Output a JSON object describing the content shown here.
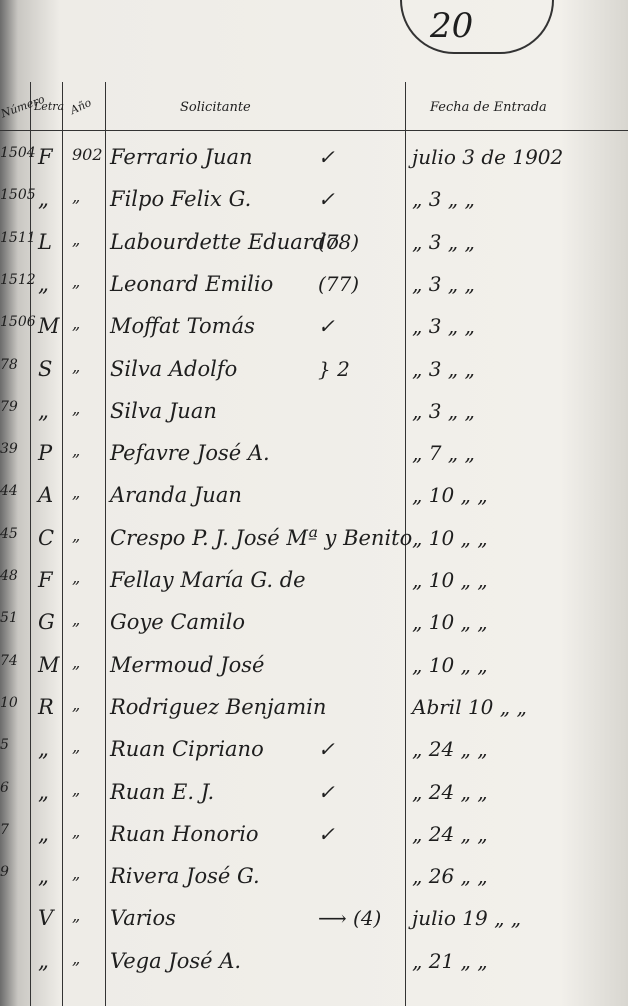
{
  "page_number": "20",
  "header": {
    "number": "Número",
    "letter": "Letra",
    "year": "Año",
    "applicant": "Solicitante",
    "date": "Fecha de Entrada"
  },
  "rows": [
    {
      "number": "1504",
      "letter": "F",
      "year": "902",
      "applicant": "Ferrario Juan",
      "note": "✓",
      "date": "julio 3 de 1902"
    },
    {
      "number": "1505",
      "letter": "„",
      "year": "„",
      "applicant": "Filpo Felix G.",
      "note": "✓",
      "date": "„ 3 „ „"
    },
    {
      "number": "1511",
      "letter": "L",
      "year": "„",
      "applicant": "Labourdette Eduardo",
      "note": "(78)",
      "date": "„ 3 „ „"
    },
    {
      "number": "1512",
      "letter": "„",
      "year": "„",
      "applicant": "Leonard Emilio",
      "note": "(77)",
      "date": "„ 3 „ „"
    },
    {
      "number": "1506",
      "letter": "M",
      "year": "„",
      "applicant": "Moffat Tomás",
      "note": "✓",
      "date": "„ 3 „ „"
    },
    {
      "number": "78",
      "letter": "S",
      "year": "„",
      "applicant": "Silva Adolfo",
      "note": "} 2",
      "date": "„ 3 „ „"
    },
    {
      "number": "79",
      "letter": "„",
      "year": "„",
      "applicant": "Silva Juan",
      "date": "„ 3 „ „"
    },
    {
      "number": "39",
      "letter": "P",
      "year": "„",
      "applicant": "Pefavre José A.",
      "date": "„ 7 „ „"
    },
    {
      "number": "44",
      "letter": "A",
      "year": "„",
      "applicant": "Aranda Juan",
      "date": "„ 10 „ „"
    },
    {
      "number": "45",
      "letter": "C",
      "year": "„",
      "applicant": "Crespo P. J. José Mª y Benito",
      "date": "„ 10 „ „"
    },
    {
      "number": "48",
      "letter": "F",
      "year": "„",
      "applicant": "Fellay María G. de",
      "date": "„ 10 „ „"
    },
    {
      "number": "51",
      "letter": "G",
      "year": "„",
      "applicant": "Goye Camilo",
      "date": "„ 10 „ „"
    },
    {
      "number": "74",
      "letter": "M",
      "year": "„",
      "applicant": "Mermoud José",
      "date": "„ 10 „ „"
    },
    {
      "number": "10",
      "letter": "R",
      "year": "„",
      "applicant": "Rodriguez Benjamin",
      "date": "Abril 10 „ „"
    },
    {
      "number": "5",
      "letter": "„",
      "year": "„",
      "applicant": "Ruan Cipriano",
      "note": "✓",
      "date": "„ 24 „ „"
    },
    {
      "number": "6",
      "letter": "„",
      "year": "„",
      "applicant": "Ruan E. J.",
      "note": "✓",
      "date": "„ 24 „ „"
    },
    {
      "number": "7",
      "letter": "„",
      "year": "„",
      "applicant": "Ruan Honorio",
      "note": "✓",
      "date": "„ 24 „ „"
    },
    {
      "number": "9",
      "letter": "„",
      "year": "„",
      "applicant": "Rivera José G.",
      "date": "„ 26 „ „"
    },
    {
      "letter": "V",
      "year": "„",
      "applicant": "Varios",
      "note": "⟶ (4)",
      "date": "julio 19 „ „"
    },
    {
      "letter": "„",
      "year": "„",
      "applicant": "Vega José A.",
      "date": "„ 21 „ „"
    }
  ]
}
